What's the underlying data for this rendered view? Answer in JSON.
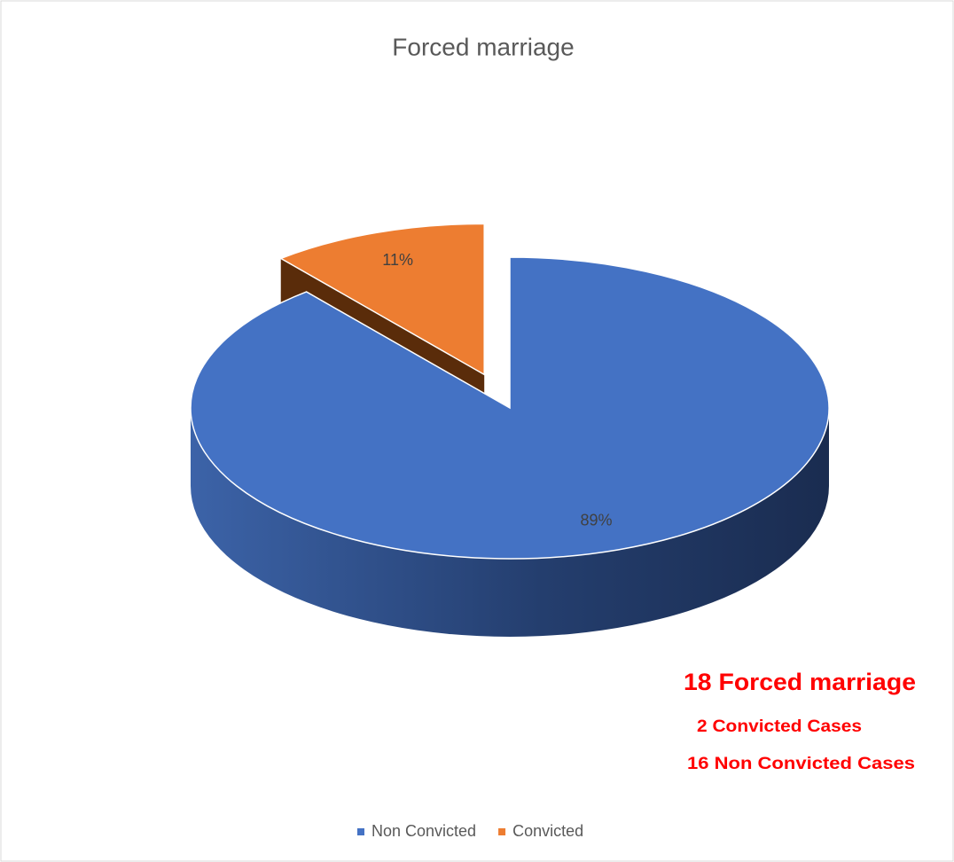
{
  "chart_data": {
    "type": "pie",
    "title": "Forced marriage",
    "categories": [
      "Non Convicted",
      "Convicted"
    ],
    "values": [
      89,
      11
    ],
    "value_labels": [
      "89%",
      "11%"
    ],
    "colors": [
      "#4472c4",
      "#ed7d31"
    ],
    "legend": "bottom",
    "annotations": [
      "18 Forced marriage",
      "2 Convicted Cases",
      "16 Non Convicted Cases"
    ]
  }
}
